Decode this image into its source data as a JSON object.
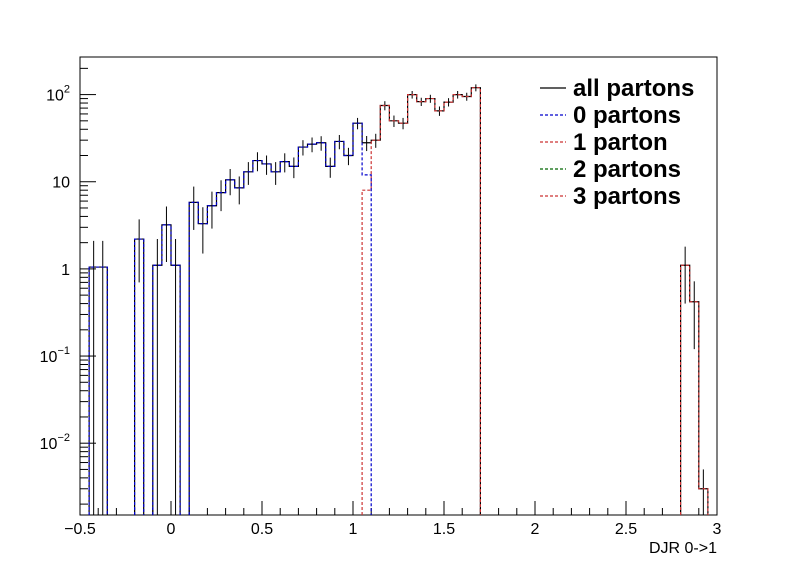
{
  "chart_data": {
    "type": "line",
    "xlabel": "DJR 0->1",
    "ylabel": "",
    "xlim": [
      -0.5,
      3.0
    ],
    "ylim": [
      0.0015,
      270
    ],
    "yscale": "log",
    "x_ticks": [
      -0.5,
      0,
      0.5,
      1,
      1.5,
      2,
      2.5,
      3
    ],
    "x_tick_labels": [
      "−0.5",
      "0",
      "0.5",
      "1",
      "1.5",
      "2",
      "2.5",
      "3"
    ],
    "y_ticks": [
      {
        "value": 0.01,
        "base": "10",
        "exp": "−2"
      },
      {
        "value": 0.1,
        "base": "10",
        "exp": "−1"
      },
      {
        "value": 1,
        "base": "1",
        "exp": ""
      },
      {
        "value": 10,
        "base": "10",
        "exp": ""
      },
      {
        "value": 100,
        "base": "10",
        "exp": "2"
      }
    ],
    "legend_position": "top-right",
    "bin_width": 0.05,
    "series": [
      {
        "name": "all partons",
        "color": "#000000",
        "dash": "solid",
        "bins": [
          {
            "x": -0.45,
            "y": 1.05,
            "err": 1.05
          },
          {
            "x": -0.4,
            "y": 1.05,
            "err": 1.05
          },
          {
            "x": -0.2,
            "y": 2.2,
            "err": 1.5
          },
          {
            "x": -0.1,
            "y": 1.1,
            "err": 1.1
          },
          {
            "x": -0.05,
            "y": 3.2,
            "err": 2.0
          },
          {
            "x": 0.0,
            "y": 1.1,
            "err": 1.1
          },
          {
            "x": 0.1,
            "y": 5.8,
            "err": 3.0
          },
          {
            "x": 0.15,
            "y": 3.3,
            "err": 1.8
          },
          {
            "x": 0.2,
            "y": 5.3,
            "err": 2.4
          },
          {
            "x": 0.25,
            "y": 7.5,
            "err": 2.9
          },
          {
            "x": 0.3,
            "y": 10.5,
            "err": 3.5
          },
          {
            "x": 0.35,
            "y": 8.5,
            "err": 3.0
          },
          {
            "x": 0.4,
            "y": 13,
            "err": 3.8
          },
          {
            "x": 0.45,
            "y": 17.5,
            "err": 4.3
          },
          {
            "x": 0.5,
            "y": 16,
            "err": 4.0
          },
          {
            "x": 0.55,
            "y": 13,
            "err": 3.8
          },
          {
            "x": 0.6,
            "y": 17,
            "err": 4.2
          },
          {
            "x": 0.65,
            "y": 15,
            "err": 4.0
          },
          {
            "x": 0.7,
            "y": 25,
            "err": 5.0
          },
          {
            "x": 0.75,
            "y": 27,
            "err": 5.2
          },
          {
            "x": 0.8,
            "y": 28,
            "err": 5.3
          },
          {
            "x": 0.85,
            "y": 15,
            "err": 3.9
          },
          {
            "x": 0.9,
            "y": 29,
            "err": 5.4
          },
          {
            "x": 0.95,
            "y": 20,
            "err": 4.5
          },
          {
            "x": 1.0,
            "y": 47,
            "err": 7.0
          },
          {
            "x": 1.05,
            "y": 28,
            "err": 5.5
          },
          {
            "x": 1.1,
            "y": 30,
            "err": 5.5
          },
          {
            "x": 1.15,
            "y": 75,
            "err": 9.0
          },
          {
            "x": 1.2,
            "y": 50,
            "err": 7.5
          },
          {
            "x": 1.25,
            "y": 47,
            "err": 7.0
          },
          {
            "x": 1.3,
            "y": 100,
            "err": 10.0
          },
          {
            "x": 1.35,
            "y": 83,
            "err": 9.0
          },
          {
            "x": 1.4,
            "y": 90,
            "err": 9.5
          },
          {
            "x": 1.45,
            "y": 65,
            "err": 8.0
          },
          {
            "x": 1.5,
            "y": 82,
            "err": 9.0
          },
          {
            "x": 1.55,
            "y": 100,
            "err": 10.0
          },
          {
            "x": 1.6,
            "y": 95,
            "err": 10.0
          },
          {
            "x": 1.65,
            "y": 120,
            "err": 11.0
          },
          {
            "x": 2.8,
            "y": 1.1,
            "err": 0.7
          },
          {
            "x": 2.85,
            "y": 0.42,
            "err": 0.3
          },
          {
            "x": 2.9,
            "y": 0.003,
            "err": 0.002
          }
        ]
      },
      {
        "name": "0 partons",
        "color": "#0000cc",
        "dash": "3,2",
        "bins": [
          {
            "x": -0.45,
            "y": 1.05
          },
          {
            "x": -0.4,
            "y": 1.05
          },
          {
            "x": -0.2,
            "y": 2.2
          },
          {
            "x": -0.1,
            "y": 1.1
          },
          {
            "x": -0.05,
            "y": 3.2
          },
          {
            "x": 0.0,
            "y": 1.1
          },
          {
            "x": 0.1,
            "y": 5.8
          },
          {
            "x": 0.15,
            "y": 3.3
          },
          {
            "x": 0.2,
            "y": 5.3
          },
          {
            "x": 0.25,
            "y": 7.5
          },
          {
            "x": 0.3,
            "y": 10.5
          },
          {
            "x": 0.35,
            "y": 8.5
          },
          {
            "x": 0.4,
            "y": 13
          },
          {
            "x": 0.45,
            "y": 17.5
          },
          {
            "x": 0.5,
            "y": 16
          },
          {
            "x": 0.55,
            "y": 13
          },
          {
            "x": 0.6,
            "y": 17
          },
          {
            "x": 0.65,
            "y": 15
          },
          {
            "x": 0.7,
            "y": 25
          },
          {
            "x": 0.75,
            "y": 27
          },
          {
            "x": 0.8,
            "y": 28
          },
          {
            "x": 0.85,
            "y": 15
          },
          {
            "x": 0.9,
            "y": 29
          },
          {
            "x": 0.95,
            "y": 20
          },
          {
            "x": 1.0,
            "y": 47
          },
          {
            "x": 1.05,
            "y": 12
          }
        ]
      },
      {
        "name": "1 parton",
        "color": "#cc3333",
        "dash": "3,2",
        "bins": [
          {
            "x": 1.05,
            "y": 8
          },
          {
            "x": 1.1,
            "y": 30
          },
          {
            "x": 1.15,
            "y": 75
          },
          {
            "x": 1.2,
            "y": 50
          },
          {
            "x": 1.25,
            "y": 47
          },
          {
            "x": 1.3,
            "y": 100
          },
          {
            "x": 1.35,
            "y": 83
          },
          {
            "x": 1.4,
            "y": 90
          },
          {
            "x": 1.45,
            "y": 65
          },
          {
            "x": 1.5,
            "y": 82
          },
          {
            "x": 1.55,
            "y": 100
          },
          {
            "x": 1.6,
            "y": 95
          },
          {
            "x": 1.65,
            "y": 120
          },
          {
            "x": 2.8,
            "y": 1.1
          },
          {
            "x": 2.85,
            "y": 0.42
          },
          {
            "x": 2.9,
            "y": 0.003
          }
        ]
      },
      {
        "name": "2 partons",
        "color": "#006600",
        "dash": "3,2",
        "bins": []
      },
      {
        "name": "3 partons",
        "color": "#cc3333",
        "dash": "3,2",
        "bins": []
      }
    ]
  }
}
